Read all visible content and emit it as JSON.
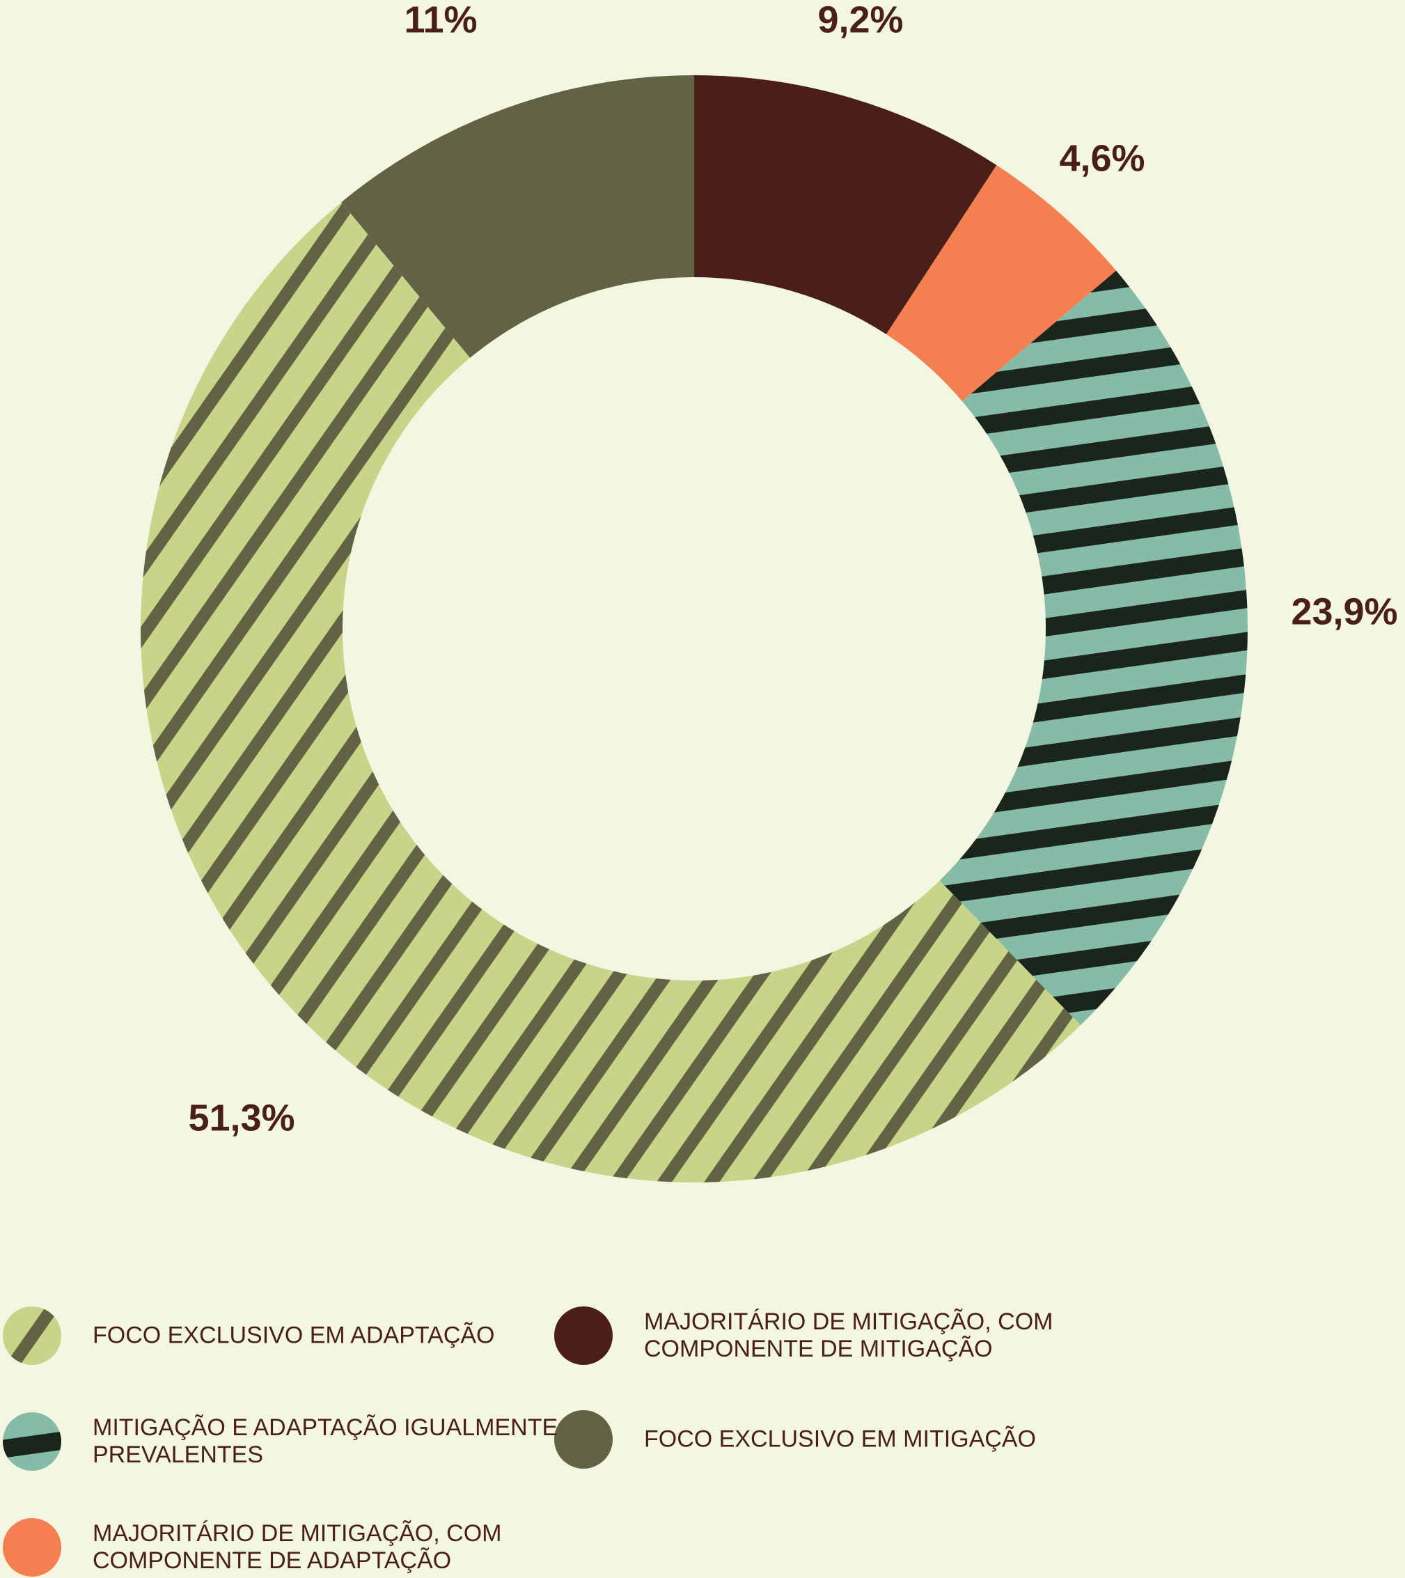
{
  "chart_data": {
    "type": "donut",
    "categories": [
      "MAJORITÁRIO DE MITIGAÇÃO, COM COMPONENTE DE MITIGAÇÃO",
      "MAJORITÁRIO DE MITIGAÇÃO, COM COMPONENTE DE ADAPTAÇÃO",
      "MITIGAÇÃO E ADAPTAÇÃO IGUALMENTE PREVALENTES",
      "FOCO EXCLUSIVO EM ADAPTAÇÃO",
      "FOCO EXCLUSIVO EM MITIGAÇÃO"
    ],
    "values": [
      9.2,
      4.6,
      23.9,
      51.3,
      11
    ],
    "value_labels": [
      "9,2%",
      "4,6%",
      "23,9%",
      "51,3%",
      "11%"
    ],
    "colors": [
      "#4a1f1a",
      "#f47f51",
      "#86bba8",
      "#c8d588",
      "#626345"
    ]
  }
}
